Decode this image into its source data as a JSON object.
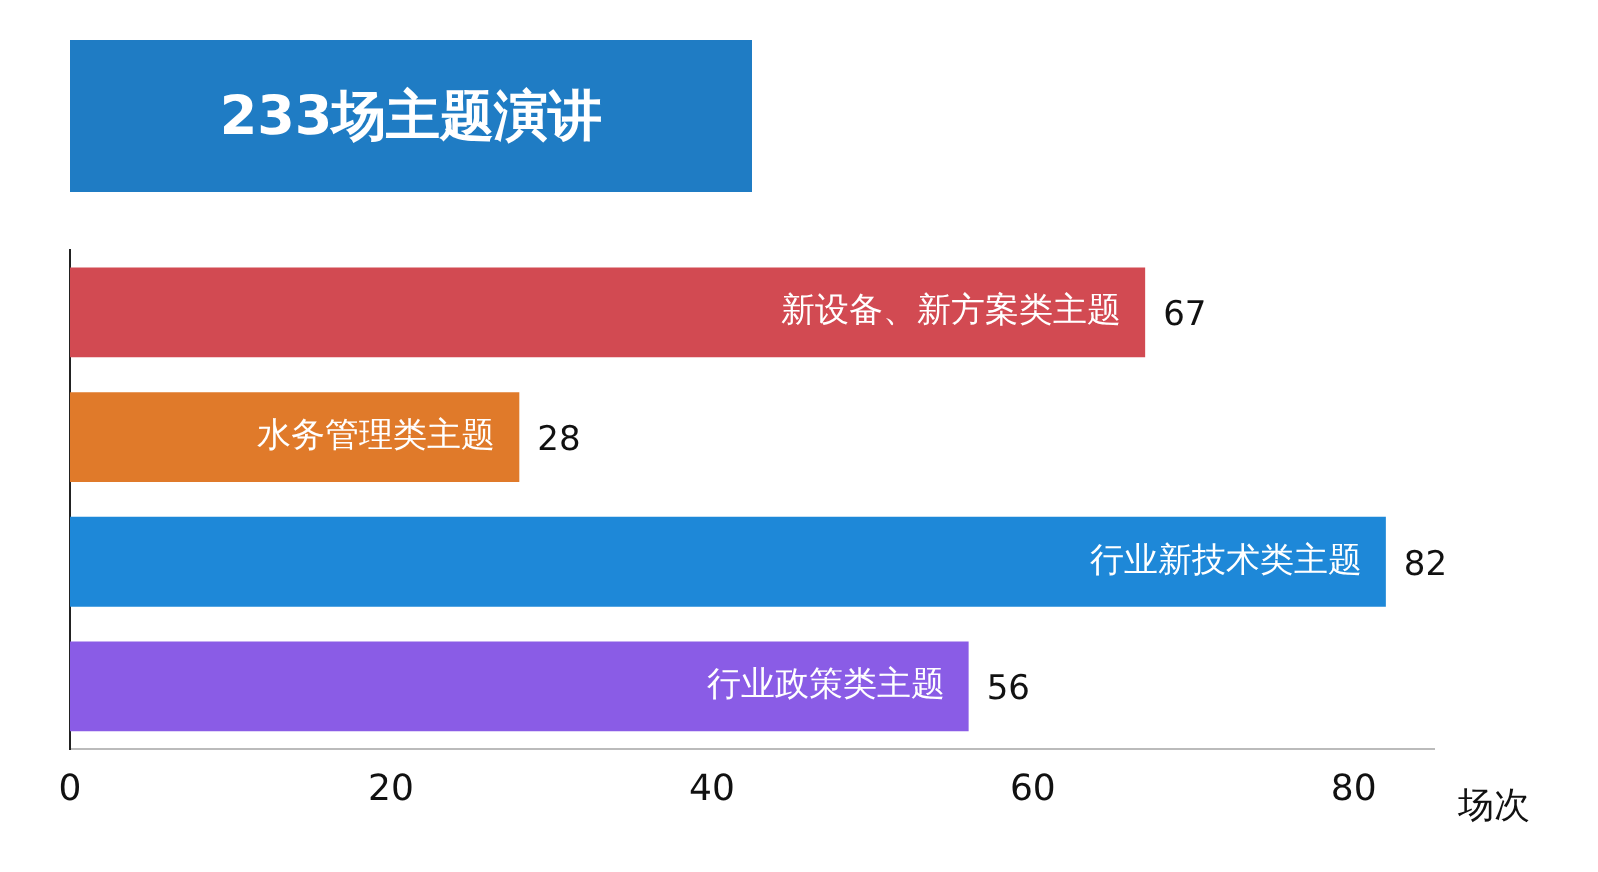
{
  "chart_data": {
    "type": "bar",
    "orientation": "horizontal",
    "title": "233场主题演讲",
    "xlabel": "场次",
    "categories": [
      "新设备、新方案类主题",
      "水务管理类主题",
      "行业新技术类主题",
      "行业政策类主题"
    ],
    "values": [
      67,
      28,
      82,
      56
    ],
    "colors": [
      "#d24a52",
      "#e07a2a",
      "#1e88d8",
      "#8a5ce6"
    ],
    "xlim": [
      0,
      85
    ],
    "xticks": [
      0,
      20,
      40,
      60,
      80
    ],
    "grid": false,
    "legend": false,
    "data_labels": true
  }
}
